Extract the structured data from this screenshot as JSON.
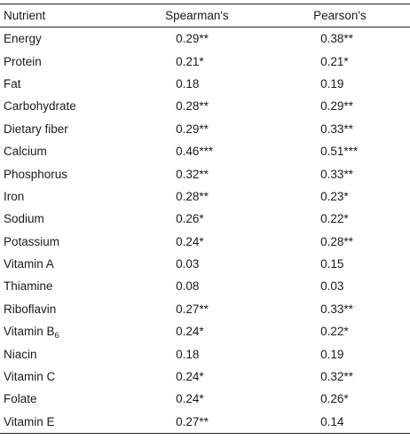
{
  "table": {
    "headers": {
      "nutrient": "Nutrient",
      "spearman": "Spearman's",
      "pearson": "Pearson's"
    },
    "rows": [
      {
        "nutrient": "Energy",
        "spearman": "0.29**",
        "pearson": "0.38**"
      },
      {
        "nutrient": "Protein",
        "spearman": "0.21*",
        "pearson": "0.21*"
      },
      {
        "nutrient": "Fat",
        "spearman": "0.18",
        "pearson": "0.19"
      },
      {
        "nutrient": "Carbohydrate",
        "spearman": "0.28**",
        "pearson": "0.29**"
      },
      {
        "nutrient": "Dietary fiber",
        "spearman": "0.29**",
        "pearson": "0.33**"
      },
      {
        "nutrient": "Calcium",
        "spearman": "0.46***",
        "pearson": "0.51***"
      },
      {
        "nutrient": "Phosphorus",
        "spearman": "0.32**",
        "pearson": "0.33**"
      },
      {
        "nutrient": "Iron",
        "spearman": "0.28**",
        "pearson": "0.23*"
      },
      {
        "nutrient": "Sodium",
        "spearman": "0.26*",
        "pearson": "0.22*"
      },
      {
        "nutrient": "Potassium",
        "spearman": "0.24*",
        "pearson": "0.28**"
      },
      {
        "nutrient": "Vitamin A",
        "spearman": "0.03",
        "pearson": "0.15"
      },
      {
        "nutrient": "Thiamine",
        "spearman": "0.08",
        "pearson": "0.03"
      },
      {
        "nutrient": "Riboflavin",
        "spearman": "0.27**",
        "pearson": "0.33**"
      },
      {
        "nutrient": "Vitamin B",
        "nutrient_sub": "6",
        "spearman": "0.24*",
        "pearson": "0.22*"
      },
      {
        "nutrient": "Niacin",
        "spearman": "0.18",
        "pearson": "0.19"
      },
      {
        "nutrient": "Vitamin C",
        "spearman": "0.24*",
        "pearson": "0.32**"
      },
      {
        "nutrient": "Folate",
        "spearman": "0.24*",
        "pearson": "0.26*"
      },
      {
        "nutrient": "Vitamin E",
        "spearman": "0.27**",
        "pearson": "0.14"
      }
    ]
  }
}
